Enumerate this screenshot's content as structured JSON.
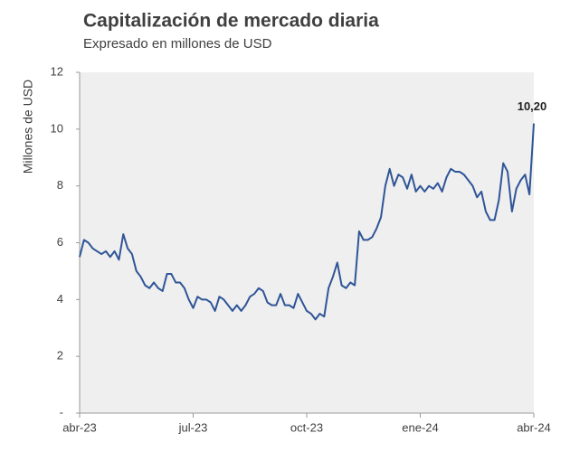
{
  "chart_data": {
    "type": "line",
    "title": "Capitalización de mercado diaria",
    "subtitle": "Expresado en millones de USD",
    "y_label": "Millones de USD",
    "categories": [
      "abr-23",
      null,
      null,
      null,
      null,
      null,
      null,
      null,
      null,
      null,
      null,
      null,
      null,
      null,
      null,
      null,
      null,
      null,
      null,
      null,
      null,
      null,
      null,
      null,
      null,
      null,
      "jul-23",
      null,
      null,
      null,
      null,
      null,
      null,
      null,
      null,
      null,
      null,
      null,
      null,
      null,
      null,
      null,
      null,
      null,
      null,
      null,
      null,
      null,
      null,
      null,
      null,
      null,
      "oct-23",
      null,
      null,
      null,
      null,
      null,
      null,
      null,
      null,
      null,
      null,
      null,
      null,
      null,
      null,
      null,
      null,
      null,
      null,
      null,
      null,
      null,
      null,
      null,
      null,
      null,
      "ene-24",
      null,
      null,
      null,
      null,
      null,
      null,
      null,
      null,
      null,
      null,
      null,
      null,
      null,
      null,
      null,
      null,
      null,
      null,
      null,
      null,
      null,
      null,
      null,
      null,
      null,
      "abr-24"
    ],
    "values": [
      5.5,
      6.1,
      6.0,
      5.8,
      5.7,
      5.6,
      5.7,
      5.5,
      5.7,
      5.4,
      6.3,
      5.8,
      5.6,
      5.0,
      4.8,
      4.5,
      4.4,
      4.6,
      4.4,
      4.3,
      4.9,
      4.9,
      4.6,
      4.6,
      4.4,
      4.0,
      3.7,
      4.1,
      4.0,
      4.0,
      3.9,
      3.6,
      4.1,
      4.0,
      3.8,
      3.6,
      3.8,
      3.6,
      3.8,
      4.1,
      4.2,
      4.4,
      4.3,
      3.9,
      3.8,
      3.8,
      4.2,
      3.8,
      3.8,
      3.7,
      4.2,
      3.9,
      3.6,
      3.5,
      3.3,
      3.5,
      3.4,
      4.4,
      4.8,
      5.3,
      4.5,
      4.4,
      4.6,
      4.5,
      6.4,
      6.1,
      6.1,
      6.2,
      6.5,
      6.9,
      8.0,
      8.6,
      8.0,
      8.4,
      8.3,
      7.9,
      8.4,
      7.8,
      8.0,
      7.8,
      8.0,
      7.9,
      8.1,
      7.8,
      8.3,
      8.6,
      8.5,
      8.5,
      8.4,
      8.2,
      8.0,
      7.6,
      7.8,
      7.1,
      6.8,
      6.8,
      7.5,
      8.8,
      8.5,
      7.1,
      7.9,
      8.2,
      8.4,
      7.7,
      10.2
    ],
    "value_labels": [
      null,
      null,
      null,
      null,
      null,
      null,
      null,
      null,
      null,
      null,
      null,
      null,
      null,
      null,
      null,
      null,
      null,
      null,
      null,
      null,
      null,
      null,
      null,
      null,
      null,
      null,
      null,
      null,
      null,
      null,
      null,
      null,
      null,
      null,
      null,
      null,
      null,
      null,
      null,
      null,
      null,
      null,
      null,
      null,
      null,
      null,
      null,
      null,
      null,
      null,
      null,
      null,
      null,
      null,
      null,
      null,
      null,
      null,
      null,
      null,
      null,
      null,
      null,
      null,
      null,
      null,
      null,
      null,
      null,
      null,
      null,
      null,
      null,
      null,
      null,
      null,
      null,
      null,
      null,
      null,
      null,
      null,
      null,
      null,
      null,
      null,
      null,
      null,
      null,
      null,
      null,
      null,
      null,
      null,
      null,
      null,
      null,
      null,
      null,
      null,
      null,
      null,
      null,
      null,
      "10,20"
    ],
    "color": "#2f5597",
    "ylim": [
      0,
      12
    ],
    "yticks": [
      {
        "value": 0,
        "label": "-"
      },
      2,
      4,
      6,
      8,
      10,
      12
    ]
  }
}
